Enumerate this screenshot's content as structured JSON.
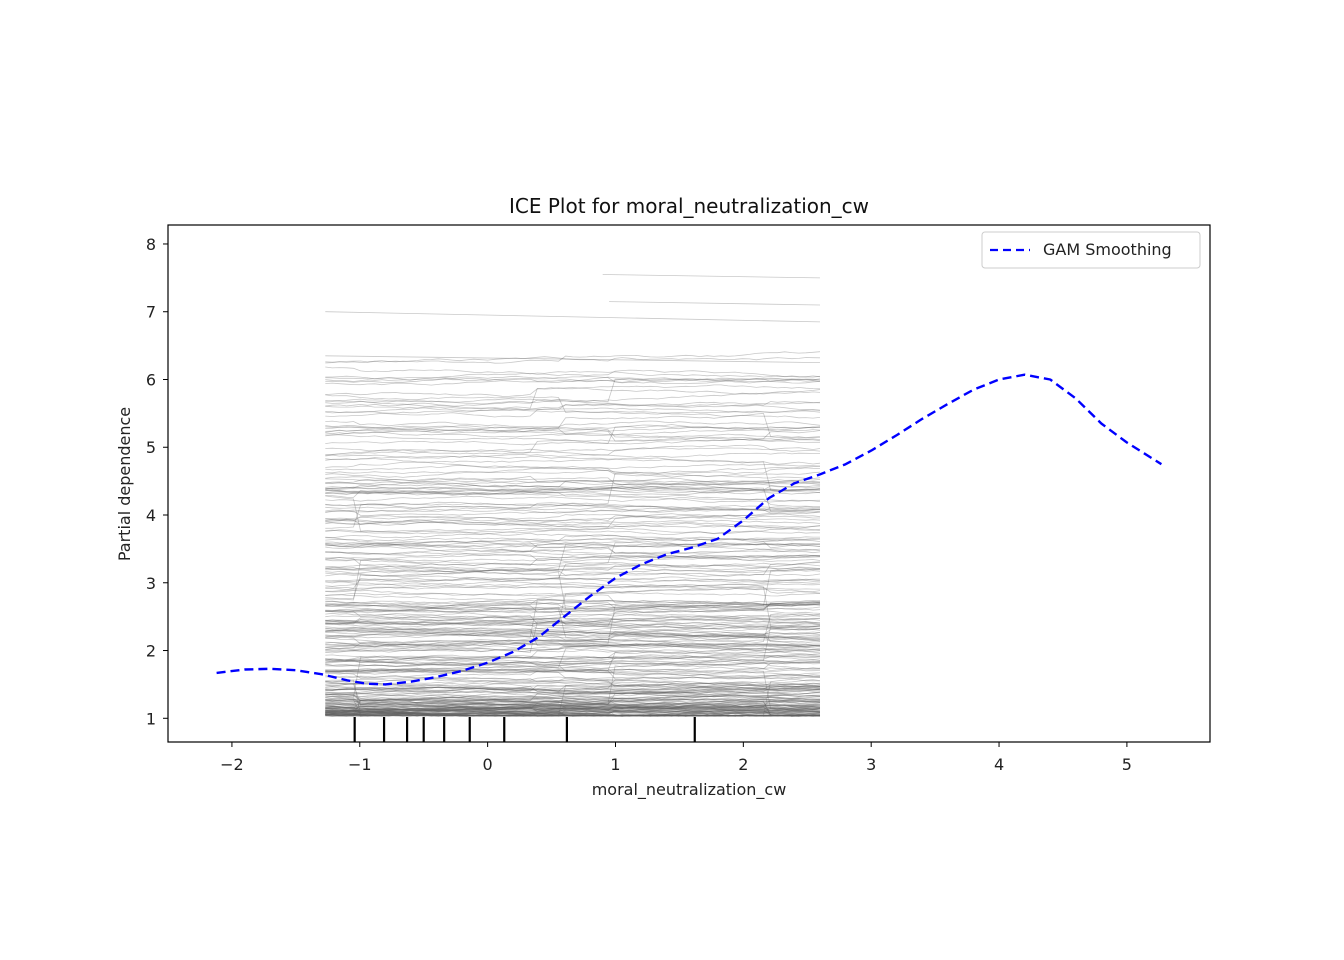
{
  "chart_data": {
    "type": "line",
    "title": "ICE Plot for moral_neutralization_cw",
    "xlabel": "moral_neutralization_cw",
    "ylabel": "Partial dependence",
    "xlim": [
      -2.5,
      5.65
    ],
    "ylim": [
      0.65,
      8.28
    ],
    "x_ticks": [
      -2,
      -1,
      0,
      1,
      2,
      3,
      4,
      5
    ],
    "y_ticks": [
      1,
      2,
      3,
      4,
      5,
      6,
      7,
      8
    ],
    "grid": false,
    "legend": {
      "placement": "top-right",
      "entries": [
        "GAM Smoothing"
      ]
    },
    "series": [
      {
        "name": "GAM Smoothing",
        "style": "dashed",
        "color": "#0000ff",
        "x": [
          -2.12,
          -1.9,
          -1.7,
          -1.5,
          -1.3,
          -1.1,
          -0.95,
          -0.8,
          -0.6,
          -0.4,
          -0.2,
          0.0,
          0.2,
          0.4,
          0.6,
          0.8,
          1.0,
          1.2,
          1.4,
          1.6,
          1.8,
          2.0,
          2.2,
          2.4,
          2.6,
          2.8,
          3.0,
          3.2,
          3.4,
          3.6,
          3.8,
          4.0,
          4.2,
          4.4,
          4.6,
          4.8,
          5.0,
          5.27
        ],
        "y": [
          1.67,
          1.72,
          1.73,
          1.71,
          1.65,
          1.56,
          1.51,
          1.5,
          1.54,
          1.61,
          1.7,
          1.82,
          1.98,
          2.2,
          2.5,
          2.8,
          3.07,
          3.27,
          3.42,
          3.52,
          3.65,
          3.92,
          4.25,
          4.47,
          4.6,
          4.75,
          4.95,
          5.18,
          5.42,
          5.64,
          5.85,
          6.0,
          6.07,
          6.0,
          5.72,
          5.35,
          5.07,
          4.75
        ]
      }
    ],
    "ice": {
      "color": "#606060",
      "x_range": [
        -1.27,
        2.6
      ],
      "n_curves": 300
    },
    "rug_ticks_x": [
      -1.04,
      -0.81,
      -0.63,
      -0.5,
      -0.34,
      -0.14,
      0.13,
      0.62,
      1.62
    ]
  }
}
